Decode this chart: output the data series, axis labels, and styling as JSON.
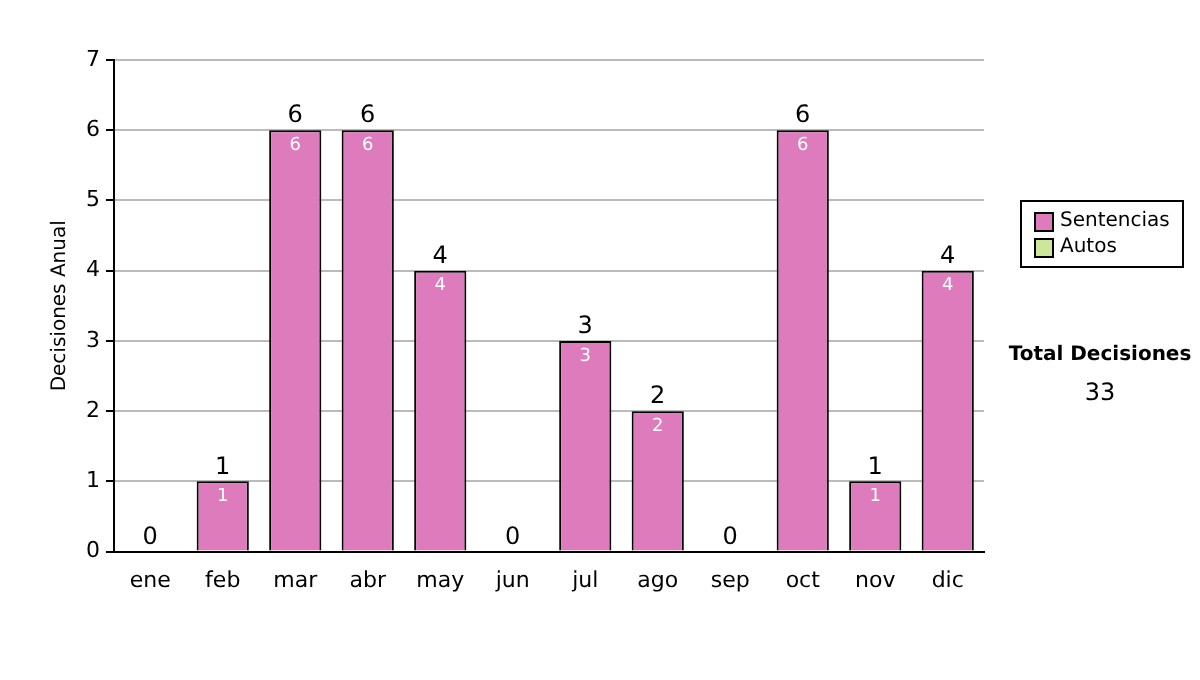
{
  "chart_data": {
    "type": "bar",
    "stacked": true,
    "ylabel": "Decisiones Anual",
    "categories": [
      "ene",
      "feb",
      "mar",
      "abr",
      "may",
      "jun",
      "jul",
      "ago",
      "sep",
      "oct",
      "nov",
      "dic"
    ],
    "series": [
      {
        "name": "Sentencias",
        "color": "#dd7bbd",
        "values": [
          0,
          1,
          6,
          6,
          4,
          0,
          3,
          2,
          0,
          6,
          1,
          4
        ],
        "value_labels": [
          null,
          "1",
          "6",
          "6",
          "4",
          null,
          "3",
          "2",
          null,
          "6",
          "1",
          "4"
        ]
      },
      {
        "name": "Autos",
        "color": "#cce69a",
        "values": [
          0,
          0,
          0,
          0,
          0,
          0,
          0,
          0,
          0,
          0,
          0,
          0
        ]
      }
    ],
    "totals": [
      "0",
      "1",
      "6",
      "6",
      "4",
      "0",
      "3",
      "2",
      "0",
      "6",
      "1",
      "4"
    ],
    "ylim": [
      0,
      7
    ],
    "yticks": [
      0,
      1,
      2,
      3,
      4,
      5,
      6,
      7
    ],
    "grid": "y",
    "legend": "right",
    "annotations": [
      "Total Decisiones",
      "33"
    ]
  }
}
